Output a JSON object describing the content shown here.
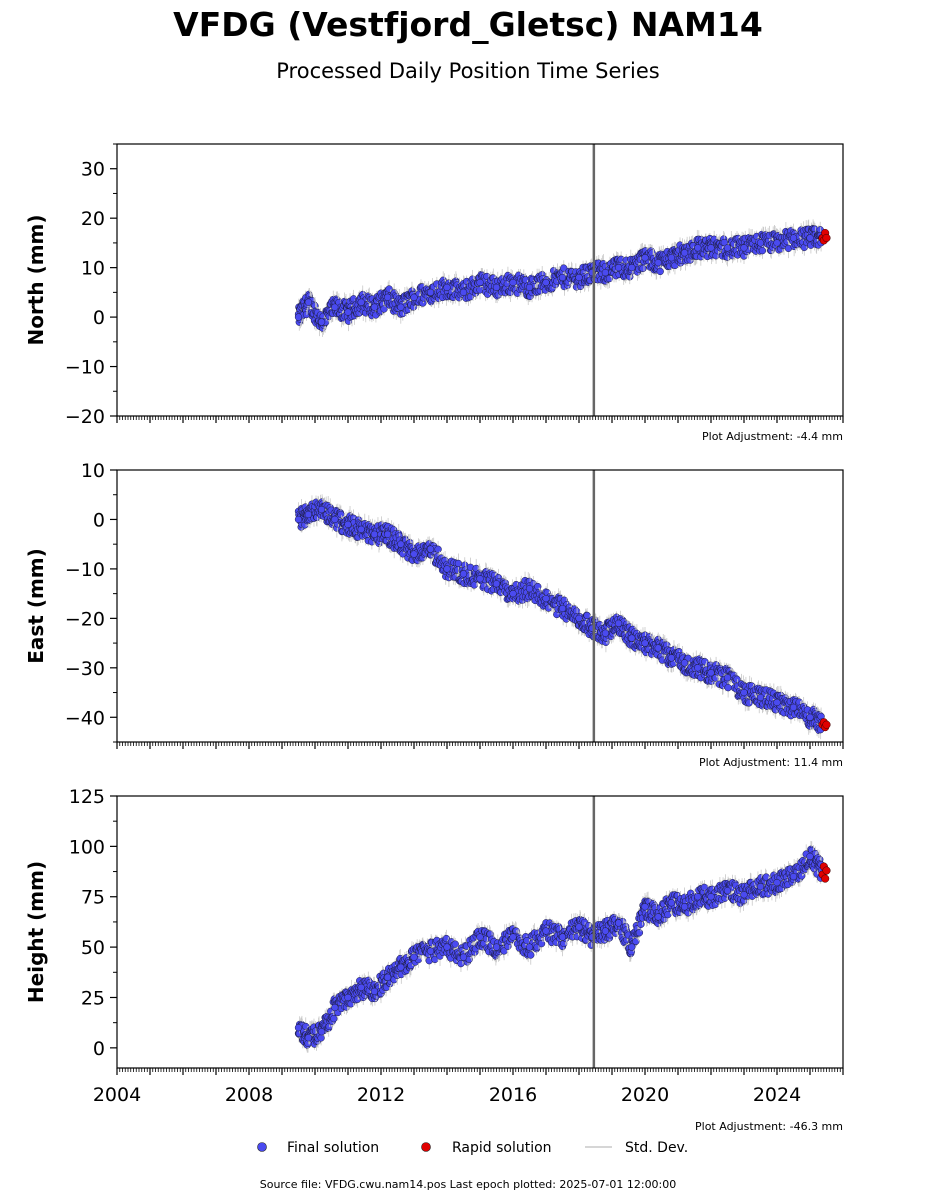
{
  "title": "VFDG (Vestfjord_Gletsc) NAM14",
  "subtitle": "Processed Daily Position Time Series",
  "footer": "Source file: VFDG.cwu.nam14.pos  Last epoch plotted: 2025-07-01 12:00:00",
  "legend": {
    "final": "Final solution",
    "rapid": "Rapid solution",
    "std": "Std. Dev."
  },
  "colors": {
    "final": "#4a4af0",
    "rapid": "#e00000",
    "std": "#c8c8c8",
    "event_line": "#666666"
  },
  "chart_data": [
    {
      "type": "scatter",
      "ylabel": "North (mm)",
      "adjustment": "Plot Adjustment: -4.4 mm",
      "xlim": [
        2004,
        2026
      ],
      "ylim": [
        -20,
        35
      ],
      "yticks": [
        -20,
        -10,
        0,
        10,
        20,
        30
      ],
      "ytick_labels": [
        "−20",
        "−10",
        "0",
        "10",
        "20",
        "30"
      ],
      "event_line_x": 2018.45,
      "series": [
        {
          "name": "Final solution",
          "x": [
            2009.5,
            2009.8,
            2010.2,
            2010.6,
            2011.0,
            2011.4,
            2011.8,
            2012.2,
            2012.6,
            2013.0,
            2013.5,
            2014.0,
            2014.5,
            2015.0,
            2015.5,
            2016.0,
            2016.5,
            2017.0,
            2017.5,
            2018.0,
            2018.4,
            2018.8,
            2019.2,
            2019.6,
            2020.0,
            2020.4,
            2020.8,
            2021.2,
            2021.6,
            2022.0,
            2022.5,
            2023.0,
            2023.5,
            2024.0,
            2024.5,
            2025.0,
            2025.35
          ],
          "y": [
            0,
            3,
            -1,
            2,
            1,
            3,
            2,
            4,
            2,
            4,
            5,
            6,
            5,
            7,
            6,
            7,
            6,
            7,
            8,
            8,
            9,
            9,
            10,
            10,
            12,
            11,
            12,
            13,
            14,
            14,
            14,
            14,
            15,
            15,
            16,
            16,
            16
          ]
        },
        {
          "name": "Rapid solution",
          "x": [
            2025.38,
            2025.42,
            2025.46,
            2025.5
          ],
          "y": [
            16,
            15.5,
            17,
            16
          ]
        }
      ]
    },
    {
      "type": "scatter",
      "ylabel": "East (mm)",
      "adjustment": "Plot Adjustment: 11.4 mm",
      "xlim": [
        2004,
        2026
      ],
      "ylim": [
        -45,
        10
      ],
      "yticks": [
        -40,
        -30,
        -20,
        -10,
        0,
        10
      ],
      "ytick_labels": [
        "−40",
        "−30",
        "−20",
        "−10",
        "0",
        "10"
      ],
      "event_line_x": 2018.45,
      "series": [
        {
          "name": "Final solution",
          "x": [
            2009.5,
            2009.8,
            2010.2,
            2010.6,
            2011.0,
            2011.4,
            2011.8,
            2012.2,
            2012.6,
            2013.0,
            2013.5,
            2014.0,
            2014.5,
            2015.0,
            2015.5,
            2016.0,
            2016.5,
            2017.0,
            2017.5,
            2018.0,
            2018.4,
            2018.8,
            2019.2,
            2019.6,
            2020.0,
            2020.4,
            2020.8,
            2021.2,
            2021.6,
            2022.0,
            2022.5,
            2023.0,
            2023.5,
            2024.0,
            2024.5,
            2025.0,
            2025.35
          ],
          "y": [
            0,
            1,
            2,
            0,
            -1,
            -2,
            -3,
            -3,
            -5,
            -7,
            -6,
            -10,
            -11,
            -12,
            -13,
            -15,
            -14,
            -16,
            -18,
            -20,
            -22,
            -23,
            -21,
            -24,
            -25,
            -26,
            -28,
            -29,
            -30,
            -31,
            -32,
            -35,
            -36,
            -37,
            -38,
            -40,
            -41
          ]
        },
        {
          "name": "Rapid solution",
          "x": [
            2025.38,
            2025.42,
            2025.46,
            2025.5
          ],
          "y": [
            -41.5,
            -41,
            -42,
            -41.5
          ]
        }
      ]
    },
    {
      "type": "scatter",
      "ylabel": "Height (mm)",
      "adjustment": "Plot Adjustment: -46.3 mm",
      "xlim": [
        2004,
        2026
      ],
      "ylim": [
        -10,
        125
      ],
      "yticks": [
        0,
        25,
        50,
        75,
        100,
        125
      ],
      "ytick_labels": [
        "0",
        "25",
        "50",
        "75",
        "100",
        "125"
      ],
      "xticks": [
        2004,
        2008,
        2012,
        2016,
        2020,
        2024
      ],
      "xtick_labels": [
        "2004",
        "2008",
        "2012",
        "2016",
        "2020",
        "2024"
      ],
      "event_line_x": 2018.45,
      "series": [
        {
          "name": "Final solution",
          "x": [
            2009.5,
            2009.8,
            2010.2,
            2010.6,
            2011.0,
            2011.4,
            2011.8,
            2012.2,
            2012.6,
            2013.0,
            2013.5,
            2014.0,
            2014.5,
            2015.0,
            2015.5,
            2016.0,
            2016.5,
            2017.0,
            2017.5,
            2018.0,
            2018.4,
            2018.8,
            2019.2,
            2019.6,
            2020.0,
            2020.4,
            2020.8,
            2021.2,
            2021.6,
            2022.0,
            2022.5,
            2023.0,
            2023.5,
            2024.0,
            2024.5,
            2025.0,
            2025.35
          ],
          "y": [
            10,
            5,
            8,
            20,
            25,
            30,
            28,
            35,
            40,
            45,
            48,
            50,
            45,
            55,
            50,
            55,
            50,
            58,
            55,
            60,
            55,
            58,
            62,
            50,
            70,
            65,
            72,
            70,
            75,
            75,
            78,
            76,
            80,
            82,
            85,
            95,
            88
          ]
        },
        {
          "name": "Rapid solution",
          "x": [
            2025.38,
            2025.42,
            2025.46,
            2025.5
          ],
          "y": [
            86,
            90,
            84,
            88
          ]
        }
      ]
    }
  ]
}
